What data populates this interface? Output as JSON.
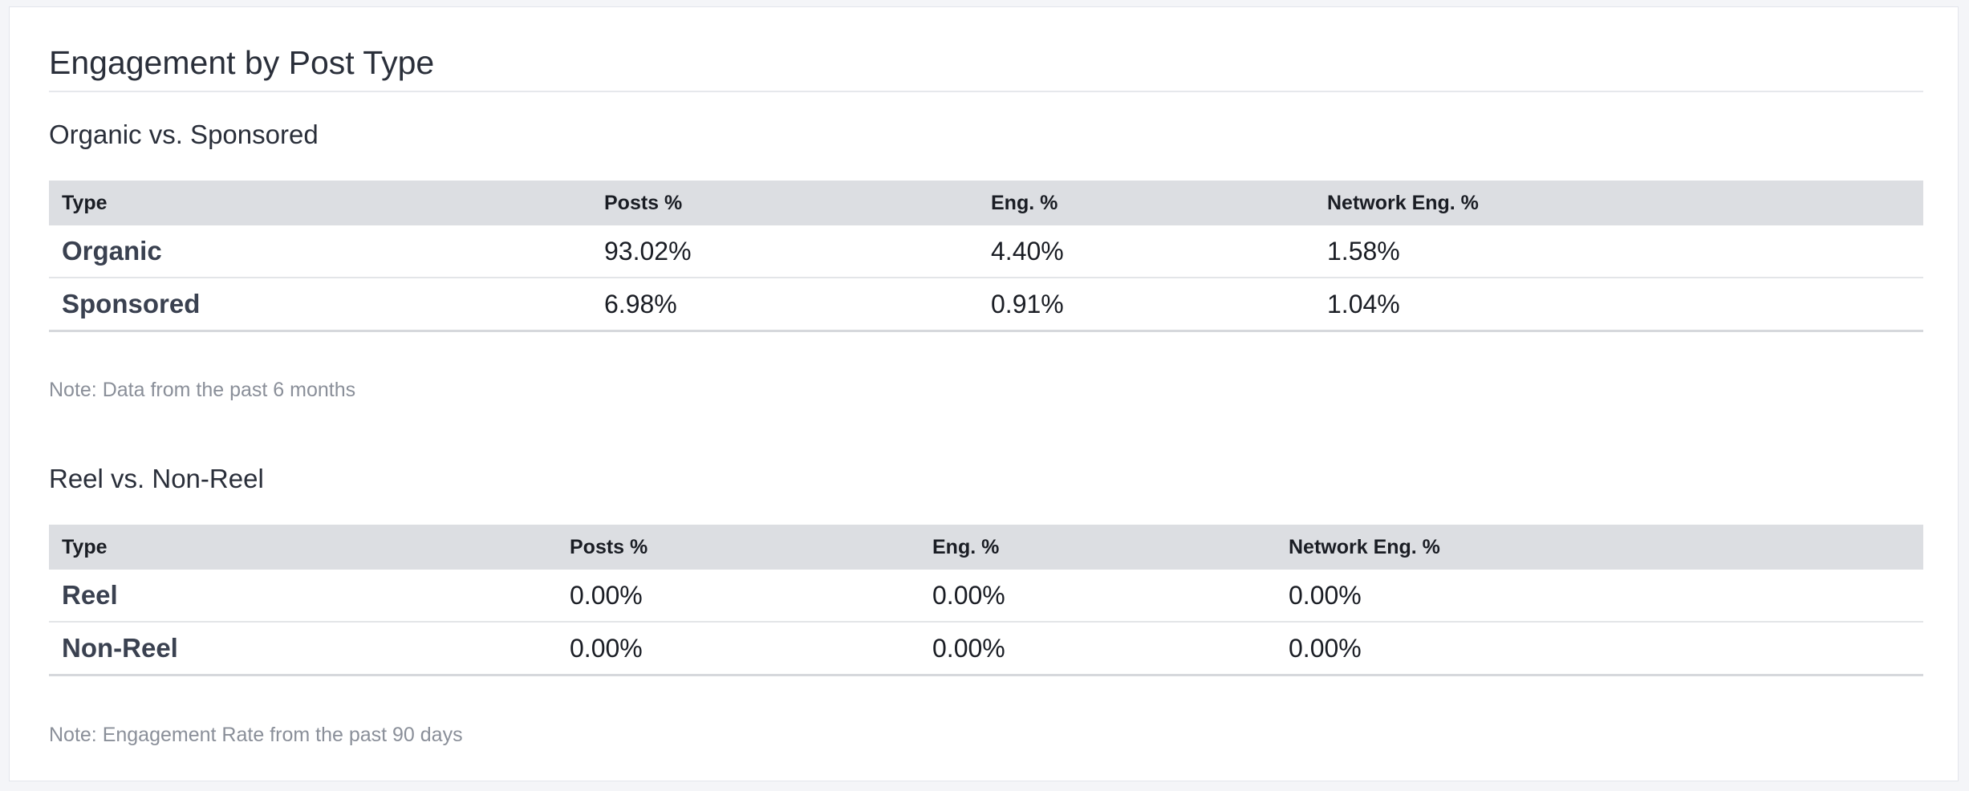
{
  "card": {
    "title": "Engagement by Post Type"
  },
  "sections": [
    {
      "title": "Organic vs. Sponsored",
      "columns": [
        "Type",
        "Posts %",
        "Eng. %",
        "Network Eng. %"
      ],
      "rows": [
        {
          "type": "Organic",
          "posts": "93.02%",
          "eng": "4.40%",
          "network": "1.58%"
        },
        {
          "type": "Sponsored",
          "posts": "6.98%",
          "eng": "0.91%",
          "network": "1.04%"
        }
      ],
      "note": "Note: Data from the past 6 months"
    },
    {
      "title": "Reel vs. Non-Reel",
      "columns": [
        "Type",
        "Posts %",
        "Eng. %",
        "Network Eng. %"
      ],
      "rows": [
        {
          "type": "Reel",
          "posts": "0.00%",
          "eng": "0.00%",
          "network": "0.00%"
        },
        {
          "type": "Non-Reel",
          "posts": "0.00%",
          "eng": "0.00%",
          "network": "0.00%"
        }
      ],
      "note": "Note: Engagement Rate from the past 90 days"
    }
  ]
}
